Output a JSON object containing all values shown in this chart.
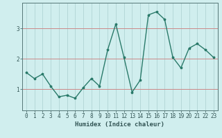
{
  "x": [
    0,
    1,
    2,
    3,
    4,
    5,
    6,
    7,
    8,
    9,
    10,
    11,
    12,
    13,
    14,
    15,
    16,
    17,
    18,
    19,
    20,
    21,
    22,
    23
  ],
  "y": [
    1.55,
    1.35,
    1.5,
    1.1,
    0.75,
    0.8,
    0.7,
    1.05,
    1.35,
    1.1,
    2.3,
    3.15,
    2.05,
    0.9,
    1.3,
    3.45,
    3.55,
    3.3,
    2.05,
    1.7,
    2.35,
    2.5,
    2.3,
    2.05
  ],
  "xlabel": "Humidex (Indice chaleur)",
  "line_color": "#2a7a6a",
  "bg_color": "#d0eeee",
  "grid_color": "#b0d4d4",
  "hline_color": "#cc8888",
  "axis_color": "#557777",
  "tick_label_color": "#335555",
  "yticks": [
    1,
    2,
    3
  ],
  "ylim": [
    0.3,
    3.85
  ],
  "xlim": [
    -0.5,
    23.5
  ],
  "marker_size": 2.5,
  "line_width": 1.0,
  "tick_fontsize": 5.5,
  "xlabel_fontsize": 6.5
}
